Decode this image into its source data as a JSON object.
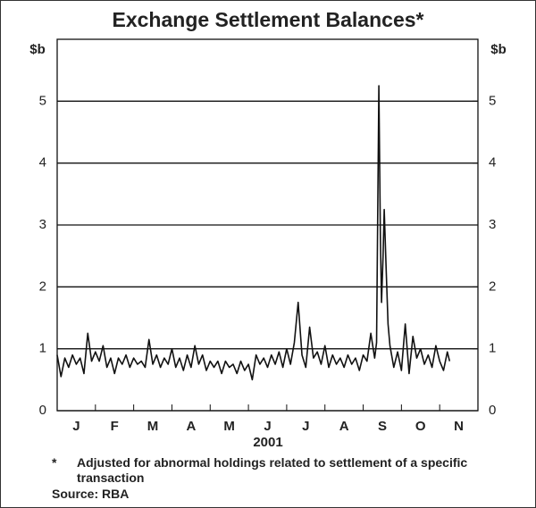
{
  "chart_data": {
    "type": "line",
    "title": "Exchange Settlement Balances*",
    "ylabel": "$b",
    "y2label": "$b",
    "xlabel": "2001",
    "footnote_marker": "*",
    "footnote": "Adjusted for abnormal holdings related to settlement of a specific transaction",
    "source": "Source: RBA",
    "xlim": [
      0,
      11
    ],
    "xticks": [
      {
        "value": 0.5,
        "label": "J"
      },
      {
        "value": 1.5,
        "label": "F"
      },
      {
        "value": 2.5,
        "label": "M"
      },
      {
        "value": 3.5,
        "label": "A"
      },
      {
        "value": 4.5,
        "label": "M"
      },
      {
        "value": 5.5,
        "label": "J"
      },
      {
        "value": 6.5,
        "label": "J"
      },
      {
        "value": 7.5,
        "label": "A"
      },
      {
        "value": 8.5,
        "label": "S"
      },
      {
        "value": 9.5,
        "label": "O"
      },
      {
        "value": 10.5,
        "label": "N"
      }
    ],
    "xminorticks": [
      1,
      2,
      3,
      4,
      5,
      6,
      7,
      8,
      9,
      10
    ],
    "ylim": [
      0,
      6
    ],
    "yticks": [
      0,
      1,
      2,
      3,
      4,
      5
    ],
    "y2lim": [
      0,
      6
    ],
    "y2ticks": [
      0,
      1,
      2,
      3,
      4,
      5
    ],
    "grid": true,
    "series": [
      {
        "color": "#111111",
        "x": [
          0.0,
          0.1,
          0.2,
          0.3,
          0.4,
          0.5,
          0.6,
          0.7,
          0.8,
          0.9,
          1.0,
          1.1,
          1.2,
          1.3,
          1.4,
          1.5,
          1.6,
          1.7,
          1.8,
          1.9,
          2.0,
          2.1,
          2.2,
          2.3,
          2.4,
          2.5,
          2.6,
          2.7,
          2.8,
          2.9,
          3.0,
          3.1,
          3.2,
          3.3,
          3.4,
          3.5,
          3.6,
          3.7,
          3.8,
          3.9,
          4.0,
          4.1,
          4.2,
          4.3,
          4.4,
          4.5,
          4.6,
          4.7,
          4.8,
          4.9,
          5.0,
          5.1,
          5.2,
          5.3,
          5.4,
          5.5,
          5.6,
          5.7,
          5.8,
          5.9,
          6.0,
          6.1,
          6.2,
          6.3,
          6.4,
          6.5,
          6.6,
          6.7,
          6.8,
          6.9,
          7.0,
          7.1,
          7.2,
          7.3,
          7.4,
          7.5,
          7.6,
          7.7,
          7.8,
          7.9,
          8.0,
          8.1,
          8.2,
          8.3,
          8.35,
          8.41,
          8.45,
          8.48,
          8.52,
          8.55,
          8.6,
          8.65,
          8.7,
          8.8,
          8.9,
          9.0,
          9.1,
          9.2,
          9.3,
          9.4,
          9.5,
          9.6,
          9.7,
          9.8,
          9.9,
          10.0,
          10.1,
          10.2,
          10.26
        ],
        "values": [
          0.9,
          0.55,
          0.85,
          0.7,
          0.9,
          0.75,
          0.85,
          0.6,
          1.25,
          0.8,
          0.95,
          0.8,
          1.05,
          0.7,
          0.85,
          0.6,
          0.85,
          0.75,
          0.9,
          0.7,
          0.85,
          0.75,
          0.8,
          0.7,
          1.15,
          0.75,
          0.9,
          0.7,
          0.85,
          0.75,
          1.0,
          0.7,
          0.85,
          0.65,
          0.9,
          0.7,
          1.05,
          0.75,
          0.9,
          0.65,
          0.8,
          0.7,
          0.8,
          0.6,
          0.8,
          0.7,
          0.75,
          0.6,
          0.8,
          0.65,
          0.75,
          0.5,
          0.9,
          0.75,
          0.85,
          0.7,
          0.9,
          0.75,
          0.95,
          0.7,
          1.0,
          0.75,
          1.1,
          1.75,
          0.9,
          0.7,
          1.35,
          0.85,
          0.95,
          0.75,
          1.05,
          0.7,
          0.9,
          0.75,
          0.85,
          0.7,
          0.9,
          0.75,
          0.85,
          0.65,
          0.9,
          0.8,
          1.25,
          0.85,
          1.1,
          5.25,
          2.8,
          1.75,
          2.5,
          3.25,
          2.3,
          1.4,
          1.05,
          0.7,
          0.95,
          0.65,
          1.4,
          0.6,
          1.2,
          0.85,
          1.0,
          0.75,
          0.9,
          0.7,
          1.05,
          0.8,
          0.65,
          0.95,
          0.8
        ]
      }
    ]
  }
}
